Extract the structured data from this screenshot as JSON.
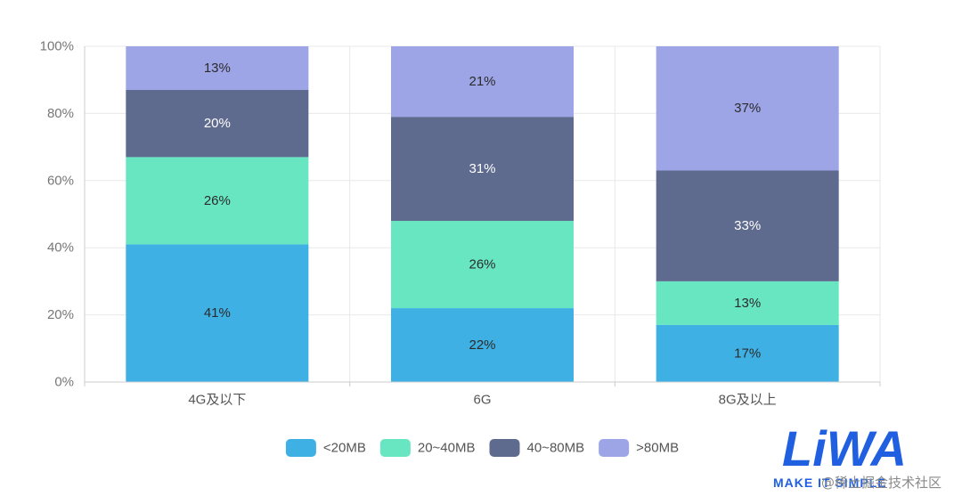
{
  "chart_data": {
    "type": "bar",
    "stacked": true,
    "categories": [
      "4G及以下",
      "6G",
      "8G及以上"
    ],
    "series": [
      {
        "name": "<20MB",
        "color": "#3eb0e4",
        "label_color": "#2b2b2b",
        "values": [
          41,
          22,
          17
        ]
      },
      {
        "name": "20~40MB",
        "color": "#68e5c1",
        "label_color": "#2b2b2b",
        "values": [
          26,
          26,
          13
        ]
      },
      {
        "name": "40~80MB",
        "color": "#5f6a8f",
        "label_color": "#ffffff",
        "values": [
          20,
          31,
          33
        ]
      },
      {
        "name": ">80MB",
        "color": "#9da5e6",
        "label_color": "#2b2b2b",
        "values": [
          13,
          21,
          37
        ]
      }
    ],
    "value_suffix": "%",
    "yticks": [
      "0%",
      "20%",
      "40%",
      "60%",
      "80%",
      "100%"
    ],
    "ylim": [
      0,
      100
    ],
    "grid": true,
    "legend_position": "bottom",
    "title": "",
    "xlabel": "",
    "ylabel": ""
  },
  "watermark": {
    "logo_text": "LiWA",
    "tagline": "MAKE IT SIMPLE",
    "overlay_text": "@稀土掘金技术社区",
    "logo_color": "#1f5fe0"
  }
}
